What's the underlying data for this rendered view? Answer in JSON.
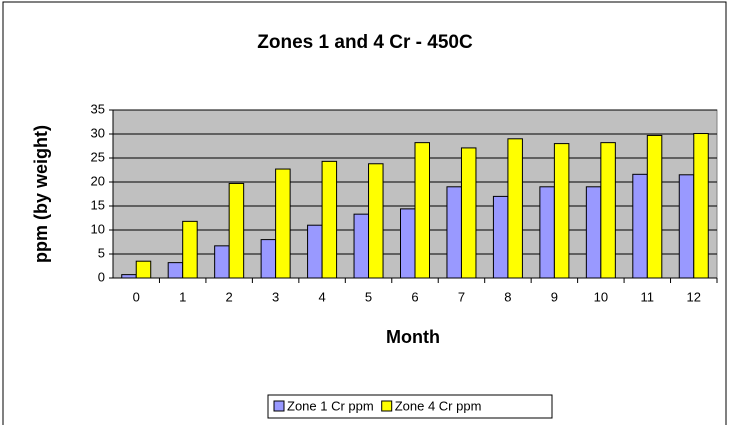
{
  "chart_data": {
    "type": "bar",
    "title": "Zones 1 and 4 Cr - 450C",
    "x_label": "Month",
    "y_label": "ppm (by weight)",
    "categories": [
      "0",
      "1",
      "2",
      "3",
      "4",
      "5",
      "6",
      "7",
      "8",
      "9",
      "10",
      "11",
      "12"
    ],
    "series": [
      {
        "name": "Zone 1 Cr ppm",
        "color": "#9999ff",
        "values": [
          0.7,
          3.2,
          6.7,
          8,
          11,
          13.3,
          14.4,
          19,
          17,
          19,
          19,
          21.6,
          21.5
        ]
      },
      {
        "name": "Zone 4 Cr ppm",
        "color": "#ffff00",
        "values": [
          3.5,
          11.8,
          19.7,
          22.7,
          24.3,
          23.8,
          28.2,
          27.1,
          29,
          28,
          28.2,
          29.7,
          30.1
        ]
      }
    ],
    "ylim": [
      0,
      35
    ],
    "yticks": [
      0,
      5,
      10,
      15,
      20,
      25,
      30,
      35
    ],
    "grid": true,
    "legend": "bottom",
    "plot_background": "#c0c0c0"
  }
}
